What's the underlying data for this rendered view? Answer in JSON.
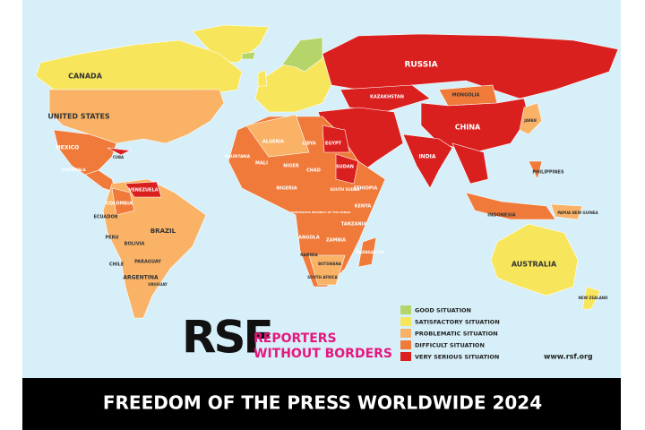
{
  "map": {
    "labels": [
      "CANADA",
      "UNITED STATES",
      "MEXICO",
      "CUBA",
      "GUATEMALA",
      "VENEZUELA",
      "COLOMBIA",
      "ECUADOR",
      "PERU",
      "BRAZIL",
      "BOLIVIA",
      "PARAGUAY",
      "CHILE",
      "ARGENTINA",
      "URUGUAY",
      "RUSSIA",
      "KAZAKHSTAN",
      "MONGOLIA",
      "CHINA",
      "INDIA",
      "JAPAN",
      "PHILIPPINES",
      "INDONESIA",
      "PAPUA NEW GUINEA",
      "AUSTRALIA",
      "NEW ZEALAND",
      "ALGERIA",
      "LIBYA",
      "EGYPT",
      "MAURITANIA",
      "MALI",
      "NIGER",
      "CHAD",
      "SUDAN",
      "ETHIOPIA",
      "NIGERIA",
      "SOUTH SUDAN",
      "KENYA",
      "DEMOCRATIC REPUBLIC OF THE CONGO",
      "TANZANIA",
      "ANGOLA",
      "ZAMBIA",
      "NAMIBIA",
      "BOTSWANA",
      "SOUTH AFRICA",
      "MADAGASCAR"
    ]
  },
  "legend": {
    "items": [
      {
        "label": "GOOD SITUATION",
        "color": "#b5d56a"
      },
      {
        "label": "SATISFACTORY SITUATION",
        "color": "#f7e55c"
      },
      {
        "label": "PROBLEMATIC SITUATION",
        "color": "#f9b266"
      },
      {
        "label": "DIFFICULT SITUATION",
        "color": "#f07a3a"
      },
      {
        "label": "VERY SERIOUS SITUATION",
        "color": "#d9201f"
      }
    ]
  },
  "logo": {
    "mark": "RSF",
    "name_line1": "REPORTERS",
    "name_line2": "WITHOUT BORDERS"
  },
  "website": "www.rsf.org",
  "banner": {
    "title": "FREEDOM OF THE PRESS WORLDWIDE 2024"
  }
}
